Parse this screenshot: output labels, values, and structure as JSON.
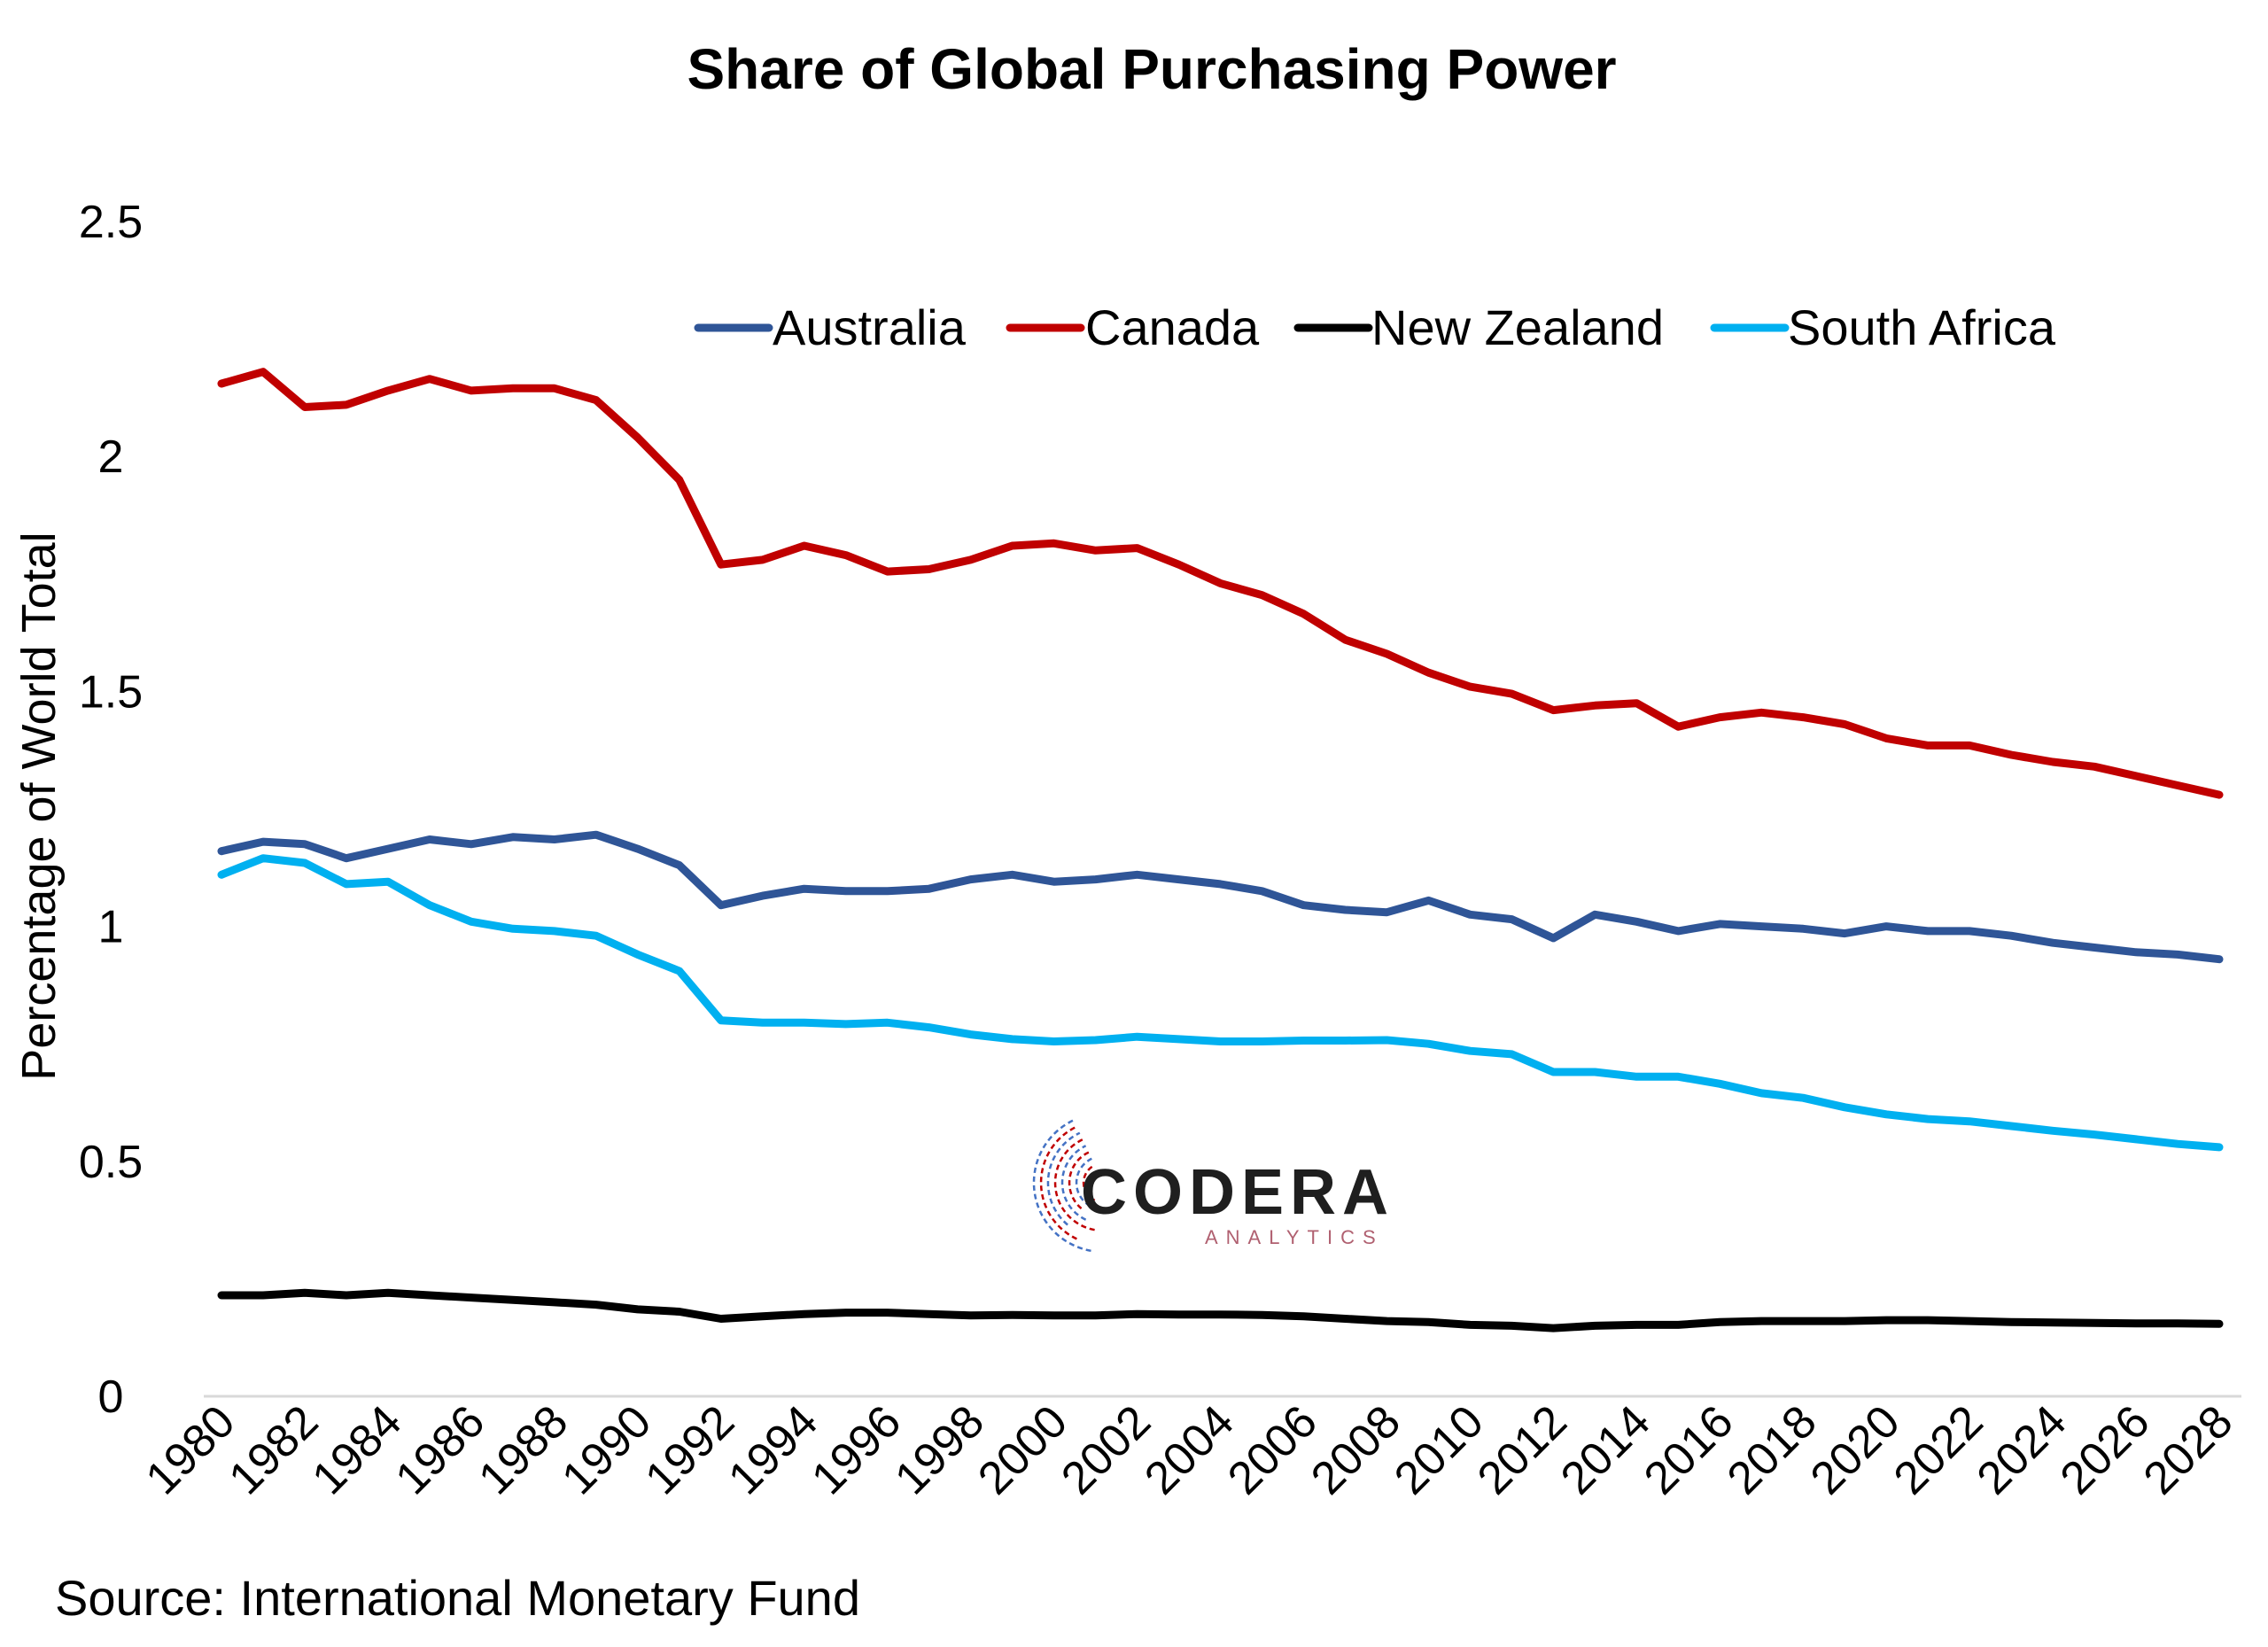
{
  "chart_data": {
    "type": "line",
    "title": "Share of Global Purchasing Power",
    "ylabel": "Percentage of World Total",
    "xlabel": "",
    "ylim": [
      0,
      2.5
    ],
    "yticks": [
      "0",
      "0.5",
      "1",
      "1.5",
      "2",
      "2.5"
    ],
    "xtick_labels": [
      "1980",
      "1982",
      "1984",
      "1986",
      "1988",
      "1990",
      "1992",
      "1994",
      "1996",
      "1998",
      "2000",
      "2002",
      "2004",
      "2006",
      "2008",
      "2010",
      "2012",
      "2014",
      "2016",
      "2018",
      "2020",
      "2022",
      "2024",
      "2026",
      "2028"
    ],
    "x": [
      1980,
      1981,
      1982,
      1983,
      1984,
      1985,
      1986,
      1987,
      1988,
      1989,
      1990,
      1991,
      1992,
      1993,
      1994,
      1995,
      1996,
      1997,
      1998,
      1999,
      2000,
      2001,
      2002,
      2003,
      2004,
      2005,
      2006,
      2007,
      2008,
      2009,
      2010,
      2011,
      2012,
      2013,
      2014,
      2015,
      2016,
      2017,
      2018,
      2019,
      2020,
      2021,
      2022,
      2023,
      2024,
      2025,
      2026,
      2027,
      2028
    ],
    "grid": false,
    "legend": "top-right",
    "series": [
      {
        "name": "Australia",
        "color": "#2F5597",
        "values": [
          1.16,
          1.18,
          1.175,
          1.145,
          1.165,
          1.185,
          1.175,
          1.19,
          1.185,
          1.195,
          1.165,
          1.13,
          1.045,
          1.065,
          1.08,
          1.075,
          1.075,
          1.08,
          1.1,
          1.11,
          1.095,
          1.1,
          1.11,
          1.1,
          1.09,
          1.075,
          1.045,
          1.035,
          1.03,
          1.055,
          1.025,
          1.015,
          0.975,
          1.025,
          1.01,
          0.99,
          1.005,
          1.0,
          0.995,
          0.985,
          1.0,
          0.99,
          0.99,
          0.98,
          0.965,
          0.955,
          0.945,
          0.94,
          0.93
        ]
      },
      {
        "name": "Canada",
        "color": "#C00000",
        "values": [
          2.155,
          2.18,
          2.105,
          2.11,
          2.14,
          2.165,
          2.14,
          2.145,
          2.145,
          2.12,
          2.04,
          1.95,
          1.77,
          1.78,
          1.81,
          1.79,
          1.755,
          1.76,
          1.78,
          1.81,
          1.815,
          1.8,
          1.805,
          1.77,
          1.73,
          1.705,
          1.665,
          1.61,
          1.58,
          1.54,
          1.51,
          1.495,
          1.46,
          1.47,
          1.475,
          1.425,
          1.445,
          1.455,
          1.445,
          1.43,
          1.4,
          1.385,
          1.385,
          1.365,
          1.35,
          1.34,
          1.32,
          1.3,
          1.28
        ]
      },
      {
        "name": "New Zealand",
        "color": "#000000",
        "values": [
          0.215,
          0.215,
          0.22,
          0.215,
          0.22,
          0.215,
          0.21,
          0.205,
          0.2,
          0.195,
          0.185,
          0.18,
          0.165,
          0.17,
          0.175,
          0.178,
          0.178,
          0.175,
          0.172,
          0.173,
          0.172,
          0.172,
          0.175,
          0.174,
          0.174,
          0.173,
          0.17,
          0.165,
          0.16,
          0.158,
          0.152,
          0.15,
          0.145,
          0.15,
          0.152,
          0.152,
          0.158,
          0.16,
          0.16,
          0.16,
          0.162,
          0.162,
          0.16,
          0.158,
          0.157,
          0.156,
          0.155,
          0.155,
          0.154
        ]
      },
      {
        "name": "South Africa",
        "color": "#00B0F0",
        "values": [
          1.11,
          1.145,
          1.135,
          1.09,
          1.095,
          1.045,
          1.01,
          0.995,
          0.99,
          0.98,
          0.94,
          0.905,
          0.8,
          0.795,
          0.795,
          0.792,
          0.795,
          0.785,
          0.77,
          0.76,
          0.755,
          0.758,
          0.765,
          0.76,
          0.755,
          0.755,
          0.757,
          0.757,
          0.758,
          0.75,
          0.735,
          0.728,
          0.69,
          0.69,
          0.68,
          0.68,
          0.665,
          0.645,
          0.635,
          0.615,
          0.6,
          0.59,
          0.585,
          0.575,
          0.565,
          0.557,
          0.547,
          0.537,
          0.53
        ]
      }
    ],
    "source": "Source: International Monetary Fund",
    "watermark": {
      "name": "CODERA",
      "subtitle": "ANALYTICS",
      "colors": [
        "#1f1f1f",
        "#C00000",
        "#4472C4"
      ]
    }
  }
}
